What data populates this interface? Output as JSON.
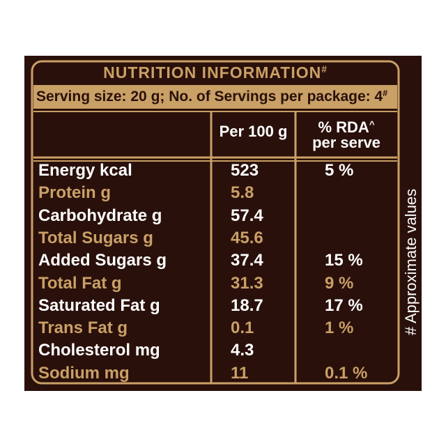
{
  "title": "NUTRITION INFORMATION",
  "title_mark": "#",
  "serving": "Serving size: 20 g; No. of Servings per package: 4",
  "serving_mark": "#",
  "columns": {
    "per100": "Per 100 g",
    "rda": "% RDA",
    "rda_mark": "^",
    "rda_line2": "per serve"
  },
  "rows": [
    {
      "name": "Energy kcal",
      "per100": "523",
      "rda": "5 %"
    },
    {
      "name": "Protein g",
      "per100": "5.8",
      "rda": null
    },
    {
      "name": "Carbohydrate g",
      "per100": "57.4",
      "rda": null
    },
    {
      "name": "Total Sugars g",
      "per100": "45.6",
      "rda": null
    },
    {
      "name": "Added Sugars g",
      "per100": "37.4",
      "rda": "15 %"
    },
    {
      "name": "Total Fat g",
      "per100": "31.3",
      "rda": "9 %"
    },
    {
      "name": "Saturated Fat g",
      "per100": "18.7",
      "rda": "17 %"
    },
    {
      "name": "Trans Fat g",
      "per100": "0.1",
      "rda": "1 %"
    },
    {
      "name": "Cholesterol mg",
      "per100": "4.3",
      "rda": null
    },
    {
      "name": "Sodium mg",
      "per100": "11",
      "rda": "0.1 %"
    }
  ],
  "side_note": "# Approximate values"
}
